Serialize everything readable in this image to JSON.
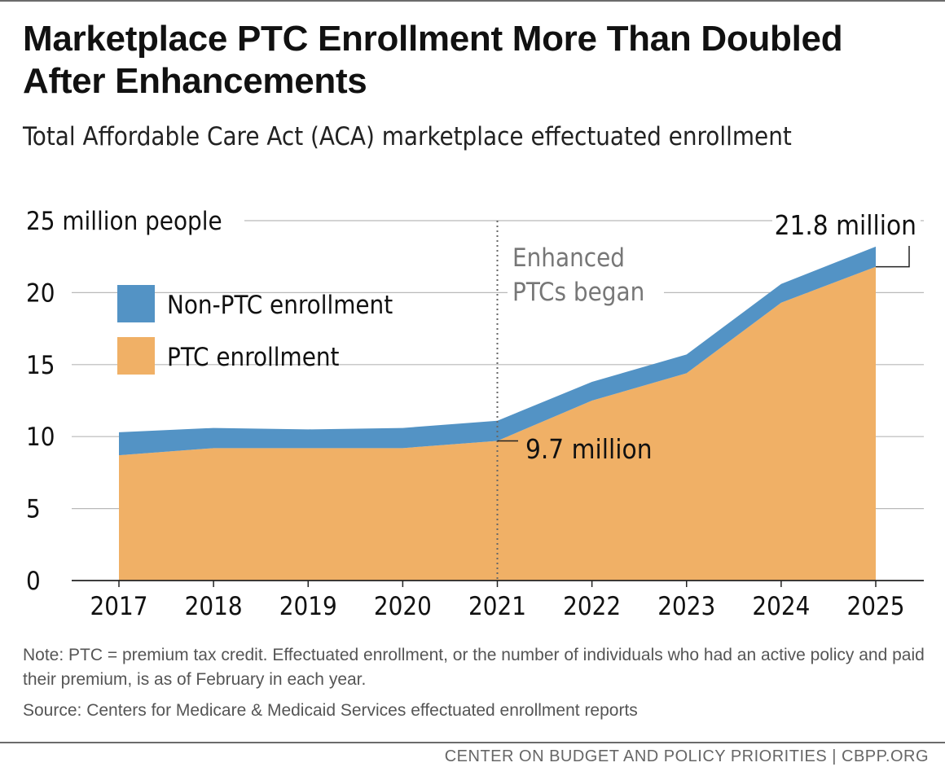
{
  "header": {
    "title": "Marketplace PTC Enrollment More Than Doubled After Enhancements",
    "subtitle": "Total Affordable Care Act (ACA) marketplace effectuated enrollment"
  },
  "chart_data": {
    "type": "area",
    "stacked": true,
    "categories": [
      "2017",
      "2018",
      "2019",
      "2020",
      "2021",
      "2022",
      "2023",
      "2024",
      "2025"
    ],
    "series": [
      {
        "name": "PTC enrollment",
        "color": "#f0b066",
        "values": [
          8.7,
          9.2,
          9.2,
          9.2,
          9.7,
          12.5,
          14.4,
          19.3,
          21.8
        ]
      },
      {
        "name": "Non-PTC enrollment",
        "color": "#5393c5",
        "values": [
          1.6,
          1.4,
          1.3,
          1.4,
          1.4,
          1.3,
          1.3,
          1.3,
          1.4
        ]
      }
    ],
    "ylim": [
      0,
      25
    ],
    "yticks": [
      0,
      5,
      10,
      15,
      20,
      25
    ],
    "ytick_labels": [
      "0",
      "5",
      "10",
      "15",
      "20",
      "25 million people"
    ],
    "grid": true,
    "legend": [
      "Non-PTC enrollment",
      "PTC enrollment"
    ],
    "legend_position": "top-left",
    "annotations": [
      {
        "text": "Enhanced",
        "text2": "PTCs began",
        "x": "2021",
        "style": "dotted-vertical-line"
      },
      {
        "text": "9.7 million",
        "x": "2021",
        "y": 9.7
      },
      {
        "text": "21.8 million",
        "x": "2025",
        "y": 21.8
      }
    ]
  },
  "footer": {
    "note": "Note: PTC = premium tax credit. Effectuated enrollment, or the number of individuals who had an active policy and paid their premium, is as of February in each year.",
    "source": "Source: Centers for Medicare & Medicaid Services effectuated enrollment reports",
    "credit": "CENTER ON BUDGET AND POLICY PRIORITIES | CBPP.ORG"
  }
}
